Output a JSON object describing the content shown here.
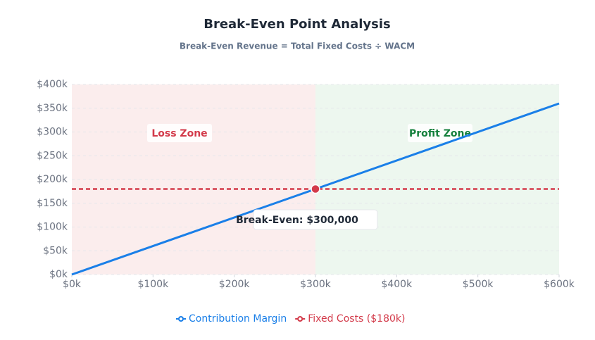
{
  "chart_data": {
    "type": "line",
    "title": "Break-Even Point Analysis",
    "subtitle": "Break-Even Revenue = Total Fixed Costs ÷ WACM",
    "x": [
      0,
      600000
    ],
    "series": [
      {
        "name": "Contribution Margin",
        "color": "#1a7fe8",
        "values": [
          0,
          360000
        ]
      },
      {
        "name": "Fixed Costs ($180k)",
        "color": "#d33a4a",
        "values": [
          180000,
          180000
        ],
        "dashed": true
      }
    ],
    "break_even": {
      "x": 300000,
      "y": 180000,
      "label": "Break-Even: $300,000"
    },
    "zones": [
      {
        "label": "Loss Zone",
        "color": "#d33a4a",
        "fill": "#fbeded"
      },
      {
        "label": "Profit Zone",
        "color": "#15803d",
        "fill": "#edf7ef"
      }
    ],
    "xlim": [
      0,
      600000
    ],
    "ylim": [
      0,
      400000
    ],
    "xticks": [
      {
        "value": 0,
        "label": "$0k"
      },
      {
        "value": 100000,
        "label": "$100k"
      },
      {
        "value": 200000,
        "label": "$200k"
      },
      {
        "value": 300000,
        "label": "$300k"
      },
      {
        "value": 400000,
        "label": "$400k"
      },
      {
        "value": 500000,
        "label": "$500k"
      },
      {
        "value": 600000,
        "label": "$600k"
      }
    ],
    "yticks": [
      {
        "value": 0,
        "label": "$0k"
      },
      {
        "value": 50000,
        "label": "$50k"
      },
      {
        "value": 100000,
        "label": "$100k"
      },
      {
        "value": 150000,
        "label": "$150k"
      },
      {
        "value": 200000,
        "label": "$200k"
      },
      {
        "value": 250000,
        "label": "$250k"
      },
      {
        "value": 300000,
        "label": "$300k"
      },
      {
        "value": 350000,
        "label": "$350k"
      },
      {
        "value": 400000,
        "label": "$400k"
      }
    ],
    "grid": true
  }
}
